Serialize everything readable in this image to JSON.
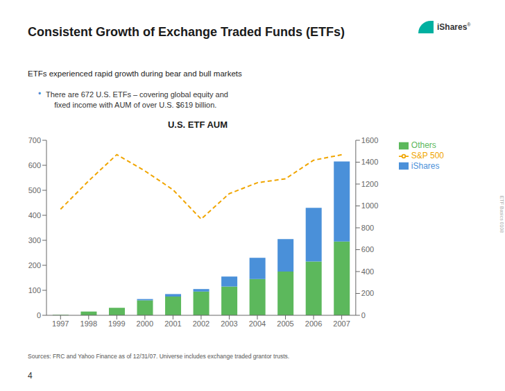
{
  "chart_data": {
    "type": "bar",
    "title": "U.S. ETF AUM",
    "subtitle": "ETFs experienced rapid growth during bear and bull markets",
    "annotations": [
      "Consistent Growth of Exchange Traded Funds (ETFs)",
      "•",
      "There are 672 U.S. ETFs – covering global equity and\n    fixed income with AUM of over U.S. $619 billion.",
      "Sources: FRC and Yahoo Finance as of 12/31/07. Universe includes exchange traded grantor trusts.",
      "4",
      "iShares",
      "®",
      "ETF Basics 0108"
    ],
    "categories": [
      "1997",
      "1998",
      "1999",
      "2000",
      "2001",
      "2002",
      "2003",
      "2004",
      "2005",
      "2006",
      "2007"
    ],
    "series": [
      {
        "name": "Others",
        "type": "bar",
        "color": "#5cb85c",
        "values": [
          2,
          15,
          30,
          60,
          75,
          95,
          115,
          145,
          175,
          215,
          295
        ]
      },
      {
        "name": "iShares",
        "type": "bar",
        "color": "#4a90d9",
        "values": [
          0,
          0,
          0,
          5,
          10,
          10,
          40,
          85,
          130,
          215,
          320
        ]
      },
      {
        "name": "S&P 500",
        "type": "line",
        "axis": "y2",
        "color": "#f0a500",
        "line_style": "dashed",
        "marker": "none",
        "values": [
          970,
          1229,
          1469,
          1320,
          1148,
          880,
          1112,
          1212,
          1248,
          1418,
          1468
        ]
      }
    ],
    "stacked": true,
    "ylim": [
      0,
      700
    ],
    "yticks": [
      0,
      100,
      200,
      300,
      400,
      500,
      600,
      700
    ],
    "y2lim": [
      0,
      1600
    ],
    "y2ticks": [
      0,
      200,
      400,
      600,
      800,
      1000,
      1200,
      1400,
      1600
    ],
    "grid": false,
    "legend": "right"
  }
}
